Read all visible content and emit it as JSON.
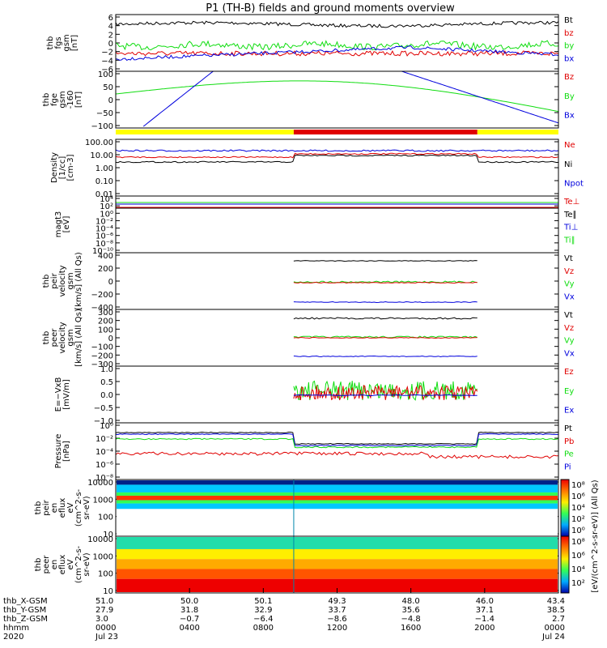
{
  "chart_data": {
    "type": "line",
    "title": "P1 (TH-B) fields and ground moments overview",
    "colors": {
      "black": "#000000",
      "red": "#e00000",
      "green": "#10dd10",
      "blue": "#0000dd",
      "yellow": "#ffff00"
    },
    "panels": [
      {
        "ylabel": [
          "thb",
          "fgs",
          "gsm",
          "[nT]"
        ],
        "ticks": [
          "6",
          "4",
          "2",
          "0",
          "−2",
          "−4",
          "−6"
        ],
        "legend": [
          "Bt",
          "bz",
          "by",
          "bx"
        ],
        "legend_colors": [
          "black",
          "red",
          "green",
          "blue"
        ]
      },
      {
        "ylabel": [
          "thb",
          "fge",
          "gsm",
          "-160",
          "[nT]"
        ],
        "ticks": [
          "100",
          "50",
          "0",
          "−50",
          "−100"
        ],
        "legend": [
          "Bz",
          "By",
          "Bx"
        ],
        "legend_colors": [
          "red",
          "green",
          "blue"
        ]
      },
      {
        "ylabel": [
          "Density",
          "[1/cc]",
          "[cm-3]"
        ],
        "ticks": [
          "100.00",
          "10.00",
          "1.00",
          "0.10",
          "0.01"
        ],
        "legend": [
          "Ne",
          "Ni",
          "Npot"
        ],
        "legend_colors": [
          "red",
          "black",
          "blue"
        ]
      },
      {
        "ylabel": [
          "magt3",
          "[eV]"
        ],
        "ticks": [
          "10⁴",
          "10²",
          "10⁰",
          "10⁻²",
          "10⁻⁴",
          "10⁻⁶",
          "10⁻⁸",
          "10⁻¹⁰"
        ],
        "legend": [
          "Te⊥",
          "Te∥",
          "Ti⊥",
          "Ti∥"
        ],
        "legend_colors": [
          "red",
          "black",
          "blue",
          "green"
        ]
      },
      {
        "ylabel": [
          "thb",
          "peir",
          "velocity",
          "gsm",
          "[km/s] (All Qs)"
        ],
        "ticks": [
          "400",
          "200",
          "0",
          "−200",
          "−400"
        ],
        "legend": [
          "Vt",
          "Vz",
          "Vy",
          "Vx"
        ],
        "legend_colors": [
          "black",
          "red",
          "green",
          "blue"
        ]
      },
      {
        "ylabel": [
          "thb",
          "peer",
          "velocity",
          "gsm",
          "[km/s] (All Qs)"
        ],
        "ticks": [
          "300",
          "200",
          "100",
          "0",
          "−100",
          "−200",
          "−300"
        ],
        "legend": [
          "Vt",
          "Vz",
          "Vy",
          "Vx"
        ],
        "legend_colors": [
          "black",
          "red",
          "green",
          "blue"
        ]
      },
      {
        "ylabel": [
          "E=−VxB",
          "[mV/m]"
        ],
        "ticks": [
          "1.0",
          "0.5",
          "0.0",
          "−0.5",
          "−1.0"
        ],
        "legend": [
          "Ez",
          "Ey",
          "Ex"
        ],
        "legend_colors": [
          "red",
          "green",
          "blue"
        ]
      },
      {
        "ylabel": [
          "Pressure",
          "[nPa]"
        ],
        "ticks": [
          "10⁰",
          "10⁻²",
          "10⁻⁴",
          "10⁻⁶",
          "10⁻⁸"
        ],
        "legend": [
          "Pt",
          "Pb",
          "Pe",
          "Pi"
        ],
        "legend_colors": [
          "black",
          "red",
          "green",
          "blue"
        ]
      },
      {
        "ylabel": [
          "thb",
          "peir",
          "en",
          "eflux",
          "eV",
          "(cm^2-s-",
          "sr-eV)"
        ],
        "ticks": [
          "10000",
          "1000",
          "100",
          "10"
        ]
      },
      {
        "ylabel": [
          "thb",
          "peer",
          "en",
          "eflux",
          "eV",
          "(cm^2-s-",
          "sr-eV)"
        ],
        "ticks": [
          "10000",
          "1000",
          "100",
          "10"
        ]
      }
    ],
    "colorbar": {
      "label": "[eV/(cm^2-s-sr-eV)] (All Qs)",
      "top_ticks": [
        "10⁸",
        "10⁶",
        "10⁴",
        "10²",
        "10⁰"
      ],
      "bottom_ticks": [
        "10⁸",
        "10⁶",
        "10⁴",
        "10²"
      ]
    },
    "x_axis": {
      "row_labels": [
        "thb_X-GSM",
        "thb_Y-GSM",
        "thb_Z-GSM",
        "hhmm",
        "2020"
      ],
      "ticks": [
        {
          "x": [
            "51.0",
            "27.9",
            "3.0",
            "0000",
            "Jul 23"
          ]
        },
        {
          "x": [
            "50.0",
            "31.8",
            "−0.7",
            "0400",
            ""
          ]
        },
        {
          "x": [
            "50.1",
            "32.9",
            "−6.4",
            "0800",
            ""
          ]
        },
        {
          "x": [
            "49.3",
            "33.7",
            "−8.6",
            "1200",
            ""
          ]
        },
        {
          "x": [
            "48.0",
            "35.6",
            "−4.8",
            "1600",
            ""
          ]
        },
        {
          "x": [
            "46.0",
            "37.1",
            "−1.4",
            "2000",
            ""
          ]
        },
        {
          "x": [
            "43.4",
            "38.5",
            "2.7",
            "0000",
            "Jul 24"
          ]
        }
      ]
    },
    "xlim_hours": [
      0,
      24
    ],
    "mode_bar": {
      "yellow_hours": [
        [
          0,
          9.65
        ],
        [
          19.6,
          24
        ]
      ],
      "red_hours": [
        [
          9.65,
          19.6
        ]
      ]
    },
    "data_coverage_hours": [
      9.65,
      19.6
    ]
  }
}
